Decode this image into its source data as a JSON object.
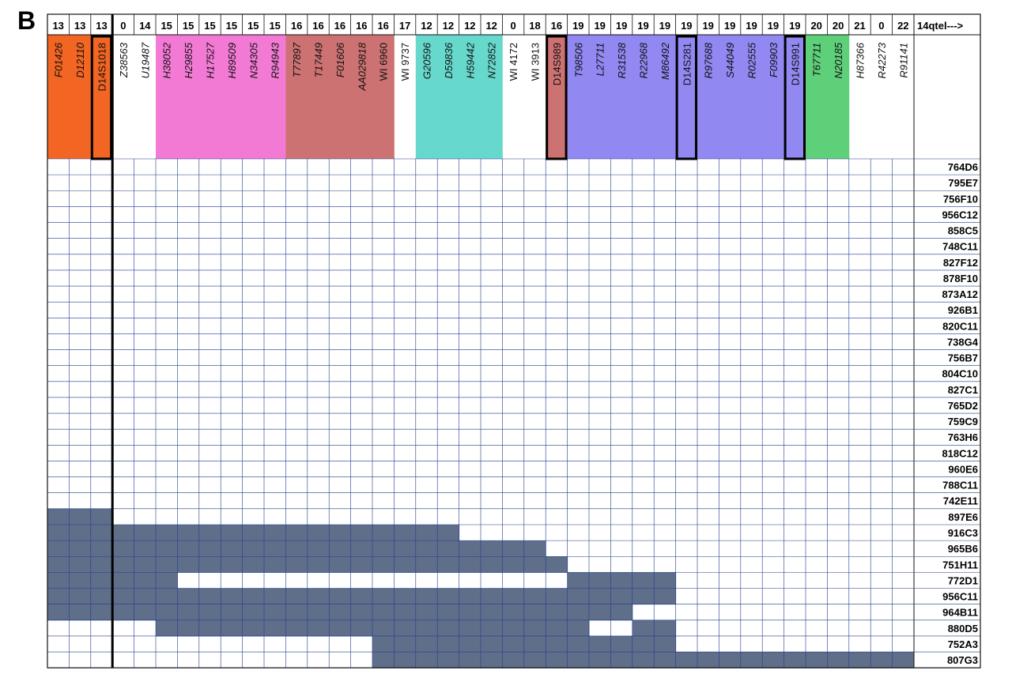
{
  "figure": {
    "panel_label": "B",
    "axis_label": "14qtel--->"
  },
  "colors": {
    "orange": "#f26522",
    "pink": "#f37ad4",
    "rose": "#cd7272",
    "cyan": "#66d9cc",
    "violet": "#9188f2",
    "green": "#5fd07a",
    "filled": "#5f6f8a",
    "grid": "#223b8e",
    "border": "#111111"
  },
  "chart_data": {
    "type": "heatmap",
    "markers": [
      {
        "num": "13",
        "name": "F01426",
        "group": "orange",
        "italic": true
      },
      {
        "num": "13",
        "name": "D12110",
        "group": "orange",
        "italic": true
      },
      {
        "num": "13",
        "name": "D14S1018",
        "group": "orange",
        "italic": false,
        "boxed": true
      },
      {
        "num": "0",
        "name": "Z38563",
        "group": "none",
        "italic": true
      },
      {
        "num": "14",
        "name": "U19487",
        "group": "none",
        "italic": true
      },
      {
        "num": "15",
        "name": "H38052",
        "group": "pink",
        "italic": true
      },
      {
        "num": "15",
        "name": "H29855",
        "group": "pink",
        "italic": true
      },
      {
        "num": "15",
        "name": "H17527",
        "group": "pink",
        "italic": true
      },
      {
        "num": "15",
        "name": "H89509",
        "group": "pink",
        "italic": true
      },
      {
        "num": "15",
        "name": "N34305",
        "group": "pink",
        "italic": true
      },
      {
        "num": "15",
        "name": "R94943",
        "group": "pink",
        "italic": true
      },
      {
        "num": "16",
        "name": "T77897",
        "group": "rose",
        "italic": true
      },
      {
        "num": "16",
        "name": "T17449",
        "group": "rose",
        "italic": true
      },
      {
        "num": "16",
        "name": "F01606",
        "group": "rose",
        "italic": true
      },
      {
        "num": "16",
        "name": "AA029818",
        "group": "rose",
        "italic": true
      },
      {
        "num": "16",
        "name": "WI 6960",
        "group": "rose",
        "italic": false
      },
      {
        "num": "17",
        "name": "WI 9737",
        "group": "none",
        "italic": false
      },
      {
        "num": "12",
        "name": "G20596",
        "group": "cyan",
        "italic": true
      },
      {
        "num": "12",
        "name": "D59836",
        "group": "cyan",
        "italic": true
      },
      {
        "num": "12",
        "name": "H59442",
        "group": "cyan",
        "italic": true
      },
      {
        "num": "12",
        "name": "N72852",
        "group": "cyan",
        "italic": true
      },
      {
        "num": "0",
        "name": "WI 4172",
        "group": "none",
        "italic": false
      },
      {
        "num": "18",
        "name": "WI 3913",
        "group": "none",
        "italic": false
      },
      {
        "num": "16",
        "name": "D14S989",
        "group": "rose",
        "italic": false,
        "boxed": true
      },
      {
        "num": "19",
        "name": "T98506",
        "group": "violet",
        "italic": true
      },
      {
        "num": "19",
        "name": "L27711",
        "group": "violet",
        "italic": true
      },
      {
        "num": "19",
        "name": "R31538",
        "group": "violet",
        "italic": true
      },
      {
        "num": "19",
        "name": "R22968",
        "group": "violet",
        "italic": true
      },
      {
        "num": "19",
        "name": "M86492",
        "group": "violet",
        "italic": true
      },
      {
        "num": "19",
        "name": "D14S281",
        "group": "violet",
        "italic": false,
        "boxed": true
      },
      {
        "num": "19",
        "name": "R97688",
        "group": "violet",
        "italic": true
      },
      {
        "num": "19",
        "name": "S44049",
        "group": "violet",
        "italic": true
      },
      {
        "num": "19",
        "name": "R02555",
        "group": "violet",
        "italic": true
      },
      {
        "num": "19",
        "name": "F09903",
        "group": "violet",
        "italic": true
      },
      {
        "num": "19",
        "name": "D14S991",
        "group": "violet",
        "italic": false,
        "boxed": true
      },
      {
        "num": "20",
        "name": "T67711",
        "group": "green",
        "italic": true
      },
      {
        "num": "20",
        "name": "N20185",
        "group": "green",
        "italic": true
      },
      {
        "num": "21",
        "name": "H87366",
        "group": "none",
        "italic": true
      },
      {
        "num": "0",
        "name": "R42273",
        "group": "none",
        "italic": true
      },
      {
        "num": "22",
        "name": "R91141",
        "group": "none",
        "italic": true
      }
    ],
    "clones": [
      {
        "name": "764D6",
        "runs": []
      },
      {
        "name": "795E7",
        "runs": []
      },
      {
        "name": "756F10",
        "runs": []
      },
      {
        "name": "956C12",
        "runs": []
      },
      {
        "name": "858C5",
        "runs": []
      },
      {
        "name": "748C11",
        "runs": []
      },
      {
        "name": "827F12",
        "runs": []
      },
      {
        "name": "878F10",
        "runs": []
      },
      {
        "name": "873A12",
        "runs": []
      },
      {
        "name": "926B1",
        "runs": []
      },
      {
        "name": "820C11",
        "runs": []
      },
      {
        "name": "738G4",
        "runs": []
      },
      {
        "name": "756B7",
        "runs": []
      },
      {
        "name": "804C10",
        "runs": []
      },
      {
        "name": "827C1",
        "runs": []
      },
      {
        "name": "765D2",
        "runs": []
      },
      {
        "name": "759C9",
        "runs": []
      },
      {
        "name": "763H6",
        "runs": []
      },
      {
        "name": "818C12",
        "runs": []
      },
      {
        "name": "960E6",
        "runs": []
      },
      {
        "name": "788C11",
        "runs": []
      },
      {
        "name": "742E11",
        "runs": []
      },
      {
        "name": "897E6",
        "runs": [
          [
            0,
            3
          ]
        ]
      },
      {
        "name": "916C3",
        "runs": [
          [
            0,
            19
          ]
        ]
      },
      {
        "name": "965B6",
        "runs": [
          [
            0,
            23
          ]
        ]
      },
      {
        "name": "751H11",
        "runs": [
          [
            0,
            24
          ]
        ]
      },
      {
        "name": "772D1",
        "runs": [
          [
            0,
            6
          ],
          [
            24,
            29
          ]
        ]
      },
      {
        "name": "956C11",
        "runs": [
          [
            0,
            29
          ]
        ]
      },
      {
        "name": "964B11",
        "runs": [
          [
            0,
            27
          ]
        ]
      },
      {
        "name": "880D5",
        "runs": [
          [
            5,
            25
          ],
          [
            27,
            29
          ]
        ]
      },
      {
        "name": "752A3",
        "runs": [
          [
            15,
            29
          ]
        ]
      },
      {
        "name": "807G3",
        "runs": [
          [
            15,
            40
          ]
        ]
      }
    ],
    "legend": "none"
  }
}
